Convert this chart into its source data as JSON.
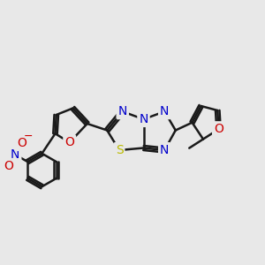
{
  "bg_color": "#e8e8e8",
  "bond_color": "#1a1a1a",
  "bond_width": 1.8,
  "atom_colors": {
    "N": "#0000cc",
    "O": "#cc0000",
    "S": "#bbbb00",
    "C": "#1a1a1a"
  },
  "figsize": [
    3.0,
    3.0
  ],
  "dpi": 100,
  "xlim": [
    0,
    12
  ],
  "ylim": [
    0,
    12
  ]
}
